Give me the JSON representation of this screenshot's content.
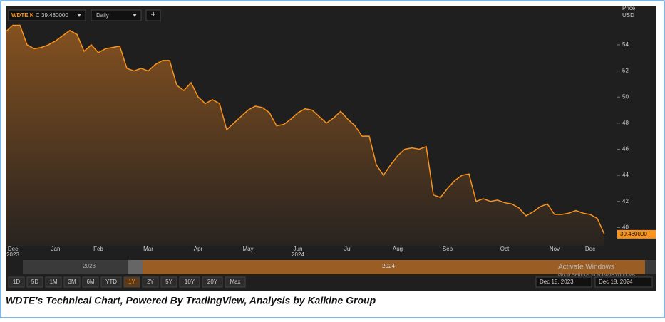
{
  "chart_data": {
    "type": "area",
    "symbol": "WDTE.K",
    "quote": "C 39.480000",
    "interval": "Daily",
    "add_button": "+",
    "axis_title": "Price",
    "axis_unit": "USD",
    "color": "#f7931e",
    "categories": [
      null,
      "Dec",
      null,
      null,
      null,
      null,
      null,
      "Jan",
      null,
      null,
      null,
      null,
      null,
      "Feb",
      null,
      null,
      null,
      null,
      null,
      null,
      "Mar",
      null,
      null,
      null,
      null,
      null,
      null,
      "Apr",
      null,
      null,
      null,
      null,
      null,
      null,
      "May",
      null,
      null,
      null,
      null,
      null,
      null,
      "Jun",
      null,
      null,
      null,
      null,
      null,
      null,
      "Jul",
      null,
      null,
      null,
      null,
      null,
      null,
      "Aug",
      null,
      null,
      null,
      null,
      null,
      null,
      "Sep",
      null,
      null,
      null,
      null,
      null,
      null,
      null,
      "Oct",
      null,
      null,
      null,
      null,
      null,
      null,
      "Nov",
      null,
      null,
      null,
      null,
      "Dec",
      null,
      null
    ],
    "category_years": [
      null,
      "2023",
      null,
      null,
      null,
      null,
      null,
      null,
      null,
      null,
      null,
      null,
      null,
      null,
      null,
      null,
      null,
      null,
      null,
      null,
      null,
      null,
      null,
      null,
      null,
      null,
      null,
      null,
      null,
      null,
      null,
      null,
      null,
      null,
      null,
      null,
      null,
      null,
      null,
      null,
      null,
      "2024",
      null,
      null,
      null,
      null,
      null,
      null,
      null,
      null,
      null,
      null,
      null,
      null,
      null,
      null,
      null,
      null,
      null,
      null,
      null,
      null,
      null,
      null,
      null,
      null,
      null,
      null,
      null,
      null,
      null,
      null,
      null,
      null,
      null,
      null,
      null,
      null,
      null,
      null,
      null,
      null,
      null,
      null,
      null
    ],
    "values": [
      55.0,
      55.5,
      55.5,
      54.0,
      53.7,
      53.8,
      54.0,
      54.3,
      54.7,
      55.1,
      54.8,
      53.5,
      54.0,
      53.4,
      53.7,
      53.8,
      53.9,
      52.2,
      52.0,
      52.2,
      52.0,
      52.5,
      52.8,
      52.8,
      50.9,
      50.5,
      51.1,
      50.0,
      49.5,
      49.8,
      49.5,
      47.5,
      48.0,
      48.5,
      49.0,
      49.3,
      49.2,
      48.8,
      47.8,
      47.9,
      48.3,
      48.8,
      49.1,
      49.0,
      48.5,
      48.0,
      48.4,
      48.9,
      48.3,
      47.8,
      47.0,
      47.0,
      44.8,
      44.0,
      44.8,
      45.5,
      46.0,
      46.1,
      46.0,
      46.2,
      42.5,
      42.3,
      43.0,
      43.6,
      44.0,
      44.1,
      42.0,
      42.2,
      42.0,
      42.1,
      41.9,
      41.8,
      41.5,
      40.9,
      41.2,
      41.6,
      41.8,
      41.0,
      41.0,
      41.1,
      41.3,
      41.1,
      41.0,
      40.7,
      39.48
    ],
    "value_labels": [
      null,
      null,
      null,
      null,
      null,
      null,
      null,
      null,
      null,
      null,
      null,
      null,
      null,
      null,
      null,
      null,
      null,
      null,
      null,
      null,
      null,
      null,
      null,
      null,
      null,
      null,
      null,
      null,
      null,
      null,
      null,
      null,
      null,
      null,
      null,
      null,
      null,
      null,
      null,
      null,
      null,
      null,
      null,
      null,
      null,
      null,
      null,
      null,
      null,
      null,
      null,
      null,
      null,
      null,
      null,
      null,
      null,
      null,
      null,
      null,
      null,
      null,
      null,
      null,
      null,
      null,
      null,
      null,
      null,
      null,
      null,
      null,
      null,
      null,
      null,
      null,
      null,
      null,
      null,
      null,
      null,
      null,
      null,
      null,
      "39.480000"
    ],
    "ylim": [
      38.6,
      57.0
    ],
    "yticks": [
      40,
      42,
      44,
      46,
      48,
      50,
      52,
      54
    ],
    "grid": false
  },
  "ui": {
    "navigator": [
      "2023",
      "2024"
    ],
    "ranges": [
      "1D",
      "5D",
      "1M",
      "3M",
      "6M",
      "YTD",
      "1Y",
      "2Y",
      "5Y",
      "10Y",
      "20Y",
      "Max"
    ],
    "from_date": "Dec 18, 2023",
    "to_date": "Dec 18, 2024",
    "watermark": "Activate Windows",
    "watermark_sub": "Go to Settings to activate Windows.",
    "caption": "WDTE's Technical Chart, Powered By TradingView, Analysis by Kalkine Group"
  }
}
